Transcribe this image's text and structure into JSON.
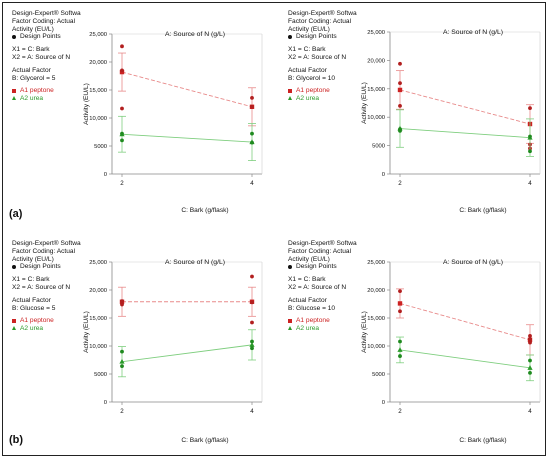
{
  "panel_labels": [
    "(a)",
    "(b)"
  ],
  "info_panels": [
    {
      "line1": "Design-Expert® Softwa",
      "line2": "Factor Coding: Actual",
      "line3": "Activity (EU/L)",
      "design_points": "Design Points",
      "x1": "X1 = C: Bark",
      "x2": "X2 = A: Source of N",
      "actual_factor": "Actual Factor",
      "factor_value": "B: Glycerol = 5",
      "legend_a1": "A1 peptone",
      "legend_a2": "A2 urea"
    },
    {
      "line1": "Design-Expert® Softwa",
      "line2": "Factor Coding: Actual",
      "line3": "Activity (EU/L)",
      "design_points": "Design Points",
      "x1": "X1 = C: Bark",
      "x2": "X2 = A: Source of N",
      "actual_factor": "Actual Factor",
      "factor_value": "B: Glycerol = 10",
      "legend_a1": "A1 peptone",
      "legend_a2": "A2 urea"
    },
    {
      "line1": "Design-Expert® Softwa",
      "line2": "Factor Coding: Actual",
      "line3": "Activity (EU/L)",
      "design_points": "Design Points",
      "x1": "X1 = C: Bark",
      "x2": "X2 = A: Source of N",
      "actual_factor": "Actual Factor",
      "factor_value": "B: Glucose = 5",
      "legend_a1": "A1 peptone",
      "legend_a2": "A2 urea"
    },
    {
      "line1": "Design-Expert® Softwa",
      "line2": "Factor Coding: Actual",
      "line3": "Activity (EU/L)",
      "design_points": "Design Points",
      "x1": "X1 = C: Bark",
      "x2": "X2 = A: Source of N",
      "actual_factor": "Actual Factor",
      "factor_value": "B: Glucose = 10",
      "legend_a1": "A1 peptone",
      "legend_a2": "A2 urea"
    }
  ],
  "colors": {
    "peptone": "#cc2222",
    "urea": "#2a9a2a",
    "axis": "#777777",
    "text": "#111111"
  },
  "chart_data": [
    {
      "type": "line",
      "title": "A: Source of N (g/L)",
      "xlabel": "C: Bark (g/flask)",
      "ylabel": "Activity (EU/L)",
      "x": [
        2,
        4
      ],
      "x_ticks": [
        "2",
        "4"
      ],
      "ylim": [
        0,
        25000
      ],
      "y_ticks": [
        "0",
        "5000",
        "10,000",
        "15,000",
        "20,000",
        "25,000"
      ],
      "series": [
        {
          "name": "A1 peptone",
          "values": [
            18200,
            12000
          ],
          "ci_low": [
            14800,
            8600
          ],
          "ci_high": [
            21600,
            15400
          ],
          "points": [
            [
              2,
              22800
            ],
            [
              2,
              18500
            ],
            [
              2,
              11700
            ],
            [
              4,
              13600
            ],
            [
              4,
              12000
            ]
          ]
        },
        {
          "name": "A2 urea",
          "values": [
            7100,
            5700
          ],
          "ci_low": [
            3900,
            2400
          ],
          "ci_high": [
            10300,
            9000
          ],
          "points": [
            [
              2,
              7200
            ],
            [
              2,
              6000
            ],
            [
              4,
              7200
            ],
            [
              4,
              5600
            ]
          ]
        }
      ]
    },
    {
      "type": "line",
      "title": "A: Source of N (g/L)",
      "xlabel": "C: Bark (g/flask)",
      "ylabel": "Activity (EU/L)",
      "x": [
        2,
        4
      ],
      "x_ticks": [
        "2",
        "4"
      ],
      "ylim": [
        0,
        25000
      ],
      "y_ticks": [
        "0",
        "5000",
        "10,000",
        "15,000",
        "20,000",
        "25,000"
      ],
      "series": [
        {
          "name": "A1 peptone",
          "values": [
            14800,
            8800
          ],
          "ci_low": [
            11400,
            5400
          ],
          "ci_high": [
            18200,
            12200
          ],
          "points": [
            [
              2,
              19400
            ],
            [
              2,
              16000
            ],
            [
              2,
              12000
            ],
            [
              4,
              11600
            ],
            [
              4,
              5200
            ],
            [
              4,
              4500
            ]
          ]
        },
        {
          "name": "A2 urea",
          "values": [
            8000,
            6400
          ],
          "ci_low": [
            4700,
            3100
          ],
          "ci_high": [
            11300,
            9700
          ],
          "points": [
            [
              2,
              7900
            ],
            [
              2,
              7600
            ],
            [
              4,
              6600
            ],
            [
              4,
              4000
            ]
          ]
        }
      ]
    },
    {
      "type": "line",
      "title": "A: Source of N (g/L)",
      "xlabel": "C: Bark (g/flask)",
      "ylabel": "Activity (EU/L)",
      "x": [
        2,
        4
      ],
      "x_ticks": [
        "2",
        "4"
      ],
      "ylim": [
        0,
        25000
      ],
      "y_ticks": [
        "0",
        "5000",
        "10,000",
        "15,000",
        "20,000",
        "25,000"
      ],
      "series": [
        {
          "name": "A1 peptone",
          "values": [
            17900,
            17900
          ],
          "ci_low": [
            15300,
            15300
          ],
          "ci_high": [
            20500,
            20500
          ],
          "points": [
            [
              2,
              18000
            ],
            [
              2,
              17400
            ],
            [
              4,
              22400
            ],
            [
              4,
              17800
            ],
            [
              4,
              14200
            ]
          ]
        },
        {
          "name": "A2 urea",
          "values": [
            7200,
            10200
          ],
          "ci_low": [
            4500,
            7500
          ],
          "ci_high": [
            9900,
            12900
          ],
          "points": [
            [
              2,
              9000
            ],
            [
              2,
              6400
            ],
            [
              4,
              10800
            ],
            [
              4,
              9600
            ]
          ]
        }
      ]
    },
    {
      "type": "line",
      "title": "A: Source of N (g/L)",
      "xlabel": "C: Bark (g/flask)",
      "ylabel": "Activity (EU/L)",
      "x": [
        2,
        4
      ],
      "x_ticks": [
        "2",
        "4"
      ],
      "ylim": [
        0,
        25000
      ],
      "y_ticks": [
        "0",
        "5000",
        "10,000",
        "15,000",
        "20,000",
        "25,000"
      ],
      "series": [
        {
          "name": "A1 peptone",
          "values": [
            17600,
            11100
          ],
          "ci_low": [
            15000,
            8400
          ],
          "ci_high": [
            20200,
            13800
          ],
          "points": [
            [
              2,
              19800
            ],
            [
              2,
              16200
            ],
            [
              4,
              11800
            ],
            [
              4,
              11200
            ],
            [
              4,
              10600
            ]
          ]
        },
        {
          "name": "A2 urea",
          "values": [
            9300,
            6100
          ],
          "ci_low": [
            7000,
            3800
          ],
          "ci_high": [
            11600,
            8400
          ],
          "points": [
            [
              2,
              10800
            ],
            [
              2,
              8200
            ],
            [
              4,
              7400
            ],
            [
              4,
              5200
            ]
          ]
        }
      ]
    }
  ]
}
